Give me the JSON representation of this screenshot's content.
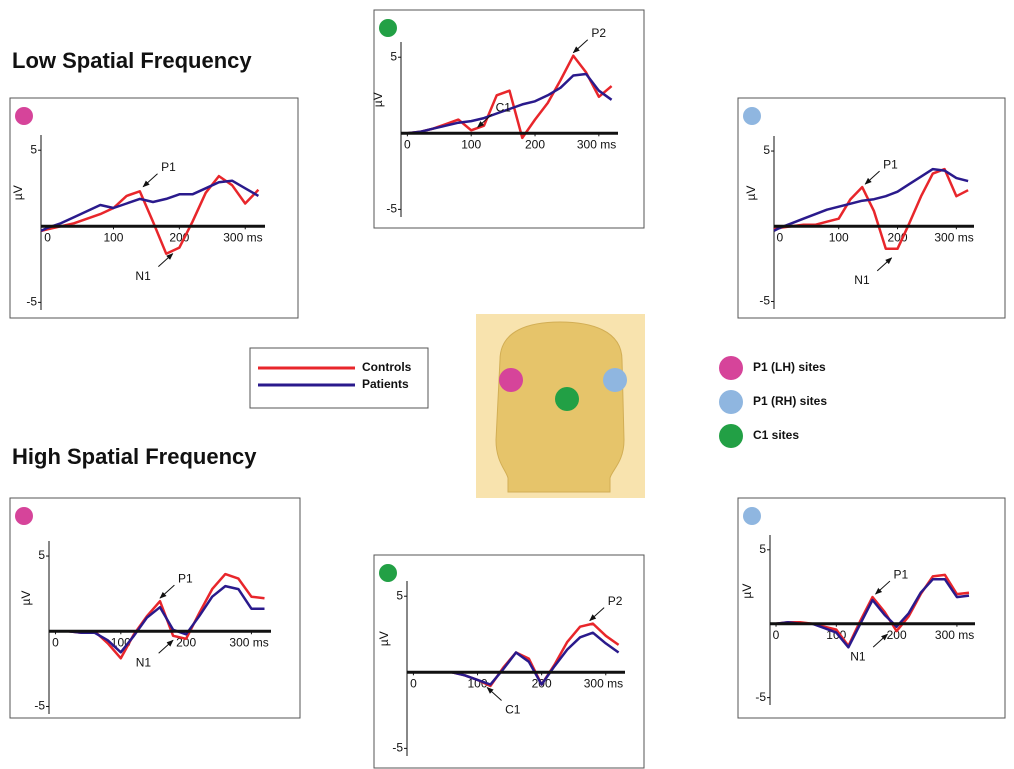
{
  "headings": [
    "Low Spatial Frequency",
    "High Spatial Frequency"
  ],
  "legend": [
    {
      "name": "Controls",
      "color": "#e8262b"
    },
    {
      "name": "Patients",
      "color": "#2a1a8c"
    }
  ],
  "sites": [
    {
      "label": "P1 (LH) sites",
      "color": "#d6449a"
    },
    {
      "label": "P1 (RH) sites",
      "color": "#8fb6e0"
    },
    {
      "label": "C1 sites",
      "color": "#22a045"
    }
  ],
  "chart_data": [
    {
      "type": "line",
      "marker_color": "#d6449a",
      "y_label": "µV",
      "x": [
        -10,
        0,
        20,
        40,
        60,
        80,
        100,
        120,
        140,
        160,
        180,
        200,
        220,
        240,
        260,
        280,
        300,
        320
      ],
      "series": [
        {
          "color": "#e8262b",
          "values": [
            -0.3,
            -0.2,
            0,
            0.2,
            0.5,
            0.8,
            1.2,
            2.0,
            2.3,
            0.3,
            -1.8,
            -1.4,
            0.3,
            2.2,
            3.3,
            2.7,
            1.5,
            2.4
          ]
        },
        {
          "color": "#2a1a8c",
          "values": [
            -0.3,
            -0.1,
            0.2,
            0.6,
            1.0,
            1.4,
            1.2,
            1.5,
            1.8,
            1.6,
            1.8,
            2.1,
            2.1,
            2.5,
            2.9,
            3.0,
            2.5,
            2.0
          ]
        }
      ],
      "xlim": [
        -10,
        330
      ],
      "ylim": [
        -5.5,
        6
      ],
      "yticks": [
        5,
        -5
      ],
      "xticks": [
        0,
        100,
        200,
        {
          "value": 300,
          "label": "300 ms"
        }
      ],
      "annotations": [
        {
          "text": "P1",
          "x": 145,
          "y": 2.4
        },
        {
          "text": "N1",
          "x": 190,
          "y": -1.6
        }
      ]
    },
    {
      "type": "line",
      "marker_color": "#22a045",
      "y_label": "µV",
      "x": [
        -10,
        0,
        20,
        40,
        60,
        80,
        100,
        120,
        140,
        160,
        180,
        200,
        220,
        240,
        260,
        280,
        300,
        320
      ],
      "series": [
        {
          "color": "#e8262b",
          "values": [
            0,
            0,
            0.1,
            0.3,
            0.6,
            0.9,
            0.2,
            0.5,
            2.5,
            2.8,
            -0.3,
            0.9,
            2.0,
            3.5,
            5.1,
            4.0,
            2.4,
            3.1
          ]
        },
        {
          "color": "#2a1a8c",
          "values": [
            0,
            0,
            0.1,
            0.3,
            0.5,
            0.7,
            0.8,
            1.0,
            1.3,
            1.6,
            1.9,
            2.1,
            2.5,
            3.0,
            3.8,
            3.9,
            2.8,
            2.2
          ]
        }
      ],
      "xlim": [
        -10,
        330
      ],
      "ylim": [
        -5.5,
        6
      ],
      "yticks": [
        5,
        -5
      ],
      "xticks": [
        0,
        100,
        200,
        {
          "value": 300,
          "label": "300 ms"
        }
      ],
      "annotations": [
        {
          "text": "C1",
          "x": 110,
          "y": 0.2
        },
        {
          "text": "P2",
          "x": 260,
          "y": 5.1
        }
      ]
    },
    {
      "type": "line",
      "marker_color": "#8fb6e0",
      "y_label": "µV",
      "x": [
        -10,
        0,
        20,
        40,
        60,
        80,
        100,
        120,
        140,
        160,
        180,
        200,
        220,
        240,
        260,
        280,
        300,
        320
      ],
      "series": [
        {
          "color": "#e8262b",
          "values": [
            -0.2,
            -0.1,
            0,
            0.1,
            0.1,
            0.3,
            0.5,
            1.8,
            2.6,
            1.0,
            -1.5,
            -1.5,
            0.2,
            2.0,
            3.5,
            3.8,
            2.0,
            2.4
          ]
        },
        {
          "color": "#2a1a8c",
          "values": [
            -0.3,
            -0.1,
            0.2,
            0.5,
            0.8,
            1.1,
            1.3,
            1.5,
            1.7,
            1.8,
            2.0,
            2.3,
            2.8,
            3.3,
            3.8,
            3.7,
            3.2,
            3.0
          ]
        }
      ],
      "xlim": [
        -10,
        330
      ],
      "ylim": [
        -5.5,
        6
      ],
      "yticks": [
        5,
        -5
      ],
      "xticks": [
        0,
        100,
        200,
        {
          "value": 300,
          "label": "300 ms"
        }
      ],
      "annotations": [
        {
          "text": "P1",
          "x": 145,
          "y": 2.6
        },
        {
          "text": "N1",
          "x": 190,
          "y": -1.9
        }
      ]
    },
    {
      "type": "line",
      "marker_color": "#d6449a",
      "y_label": "µV",
      "x": [
        -10,
        0,
        20,
        40,
        60,
        80,
        100,
        120,
        140,
        160,
        180,
        200,
        220,
        240,
        260,
        280,
        300,
        320
      ],
      "series": [
        {
          "color": "#e8262b",
          "values": [
            0,
            0,
            0,
            -0.1,
            0,
            -0.8,
            -1.8,
            -0.2,
            1.0,
            2.0,
            -0.3,
            -0.5,
            1.2,
            2.8,
            3.8,
            3.5,
            2.3,
            2.2
          ]
        },
        {
          "color": "#2a1a8c",
          "values": [
            0,
            0,
            0,
            -0.1,
            -0.1,
            -0.6,
            -1.4,
            -0.3,
            0.9,
            1.6,
            0.1,
            -0.2,
            1.0,
            2.3,
            3.0,
            2.8,
            1.5,
            1.5
          ]
        }
      ],
      "xlim": [
        -10,
        330
      ],
      "ylim": [
        -5.5,
        6
      ],
      "yticks": [
        5,
        -5
      ],
      "xticks": [
        0,
        100,
        200,
        {
          "value": 300,
          "label": "300 ms"
        }
      ],
      "annotations": [
        {
          "text": "P1",
          "x": 160,
          "y": 2.0
        },
        {
          "text": "N1",
          "x": 180,
          "y": -0.4
        }
      ]
    },
    {
      "type": "line",
      "marker_color": "#22a045",
      "y_label": "µV",
      "x": [
        -10,
        0,
        20,
        40,
        60,
        80,
        100,
        120,
        140,
        160,
        180,
        200,
        220,
        240,
        260,
        280,
        300,
        320
      ],
      "series": [
        {
          "color": "#e8262b",
          "values": [
            0,
            0,
            0,
            0,
            0,
            -0.2,
            -0.5,
            -0.9,
            0.3,
            1.3,
            0.9,
            -0.8,
            0.5,
            2.0,
            3.0,
            3.2,
            2.4,
            1.8
          ]
        },
        {
          "color": "#2a1a8c",
          "values": [
            0,
            0,
            0,
            0,
            0,
            -0.2,
            -0.5,
            -0.8,
            0.2,
            1.3,
            0.7,
            -0.8,
            0.4,
            1.5,
            2.3,
            2.6,
            1.9,
            1.3
          ]
        }
      ],
      "xlim": [
        -10,
        330
      ],
      "ylim": [
        -5.5,
        6
      ],
      "yticks": [
        5,
        -5
      ],
      "xticks": [
        0,
        100,
        200,
        {
          "value": 300,
          "label": "300 ms"
        }
      ],
      "annotations": [
        {
          "text": "C1",
          "x": 115,
          "y": -0.8
        },
        {
          "text": "P2",
          "x": 275,
          "y": 3.2
        }
      ]
    },
    {
      "type": "line",
      "marker_color": "#8fb6e0",
      "y_label": "µV",
      "x": [
        -10,
        0,
        20,
        40,
        60,
        80,
        100,
        120,
        140,
        160,
        180,
        200,
        220,
        240,
        260,
        280,
        300,
        320
      ],
      "series": [
        {
          "color": "#e8262b",
          "values": [
            0,
            0,
            0.1,
            0.1,
            0,
            -0.2,
            -0.4,
            -1.5,
            0.2,
            1.8,
            0.8,
            -0.5,
            0.5,
            2.0,
            3.2,
            3.3,
            2.0,
            2.1
          ]
        },
        {
          "color": "#2a1a8c",
          "values": [
            0,
            0,
            0.1,
            0,
            0,
            -0.3,
            -0.6,
            -1.6,
            0,
            1.6,
            0.6,
            -0.2,
            0.7,
            2.1,
            3.0,
            3.0,
            1.8,
            1.9
          ]
        }
      ],
      "xlim": [
        -10,
        330
      ],
      "ylim": [
        -5.5,
        6
      ],
      "yticks": [
        5,
        -5
      ],
      "xticks": [
        0,
        100,
        200,
        {
          "value": 300,
          "label": "300 ms"
        }
      ],
      "annotations": [
        {
          "text": "P1",
          "x": 165,
          "y": 1.8
        },
        {
          "text": "N1",
          "x": 185,
          "y": -0.5
        }
      ]
    }
  ]
}
